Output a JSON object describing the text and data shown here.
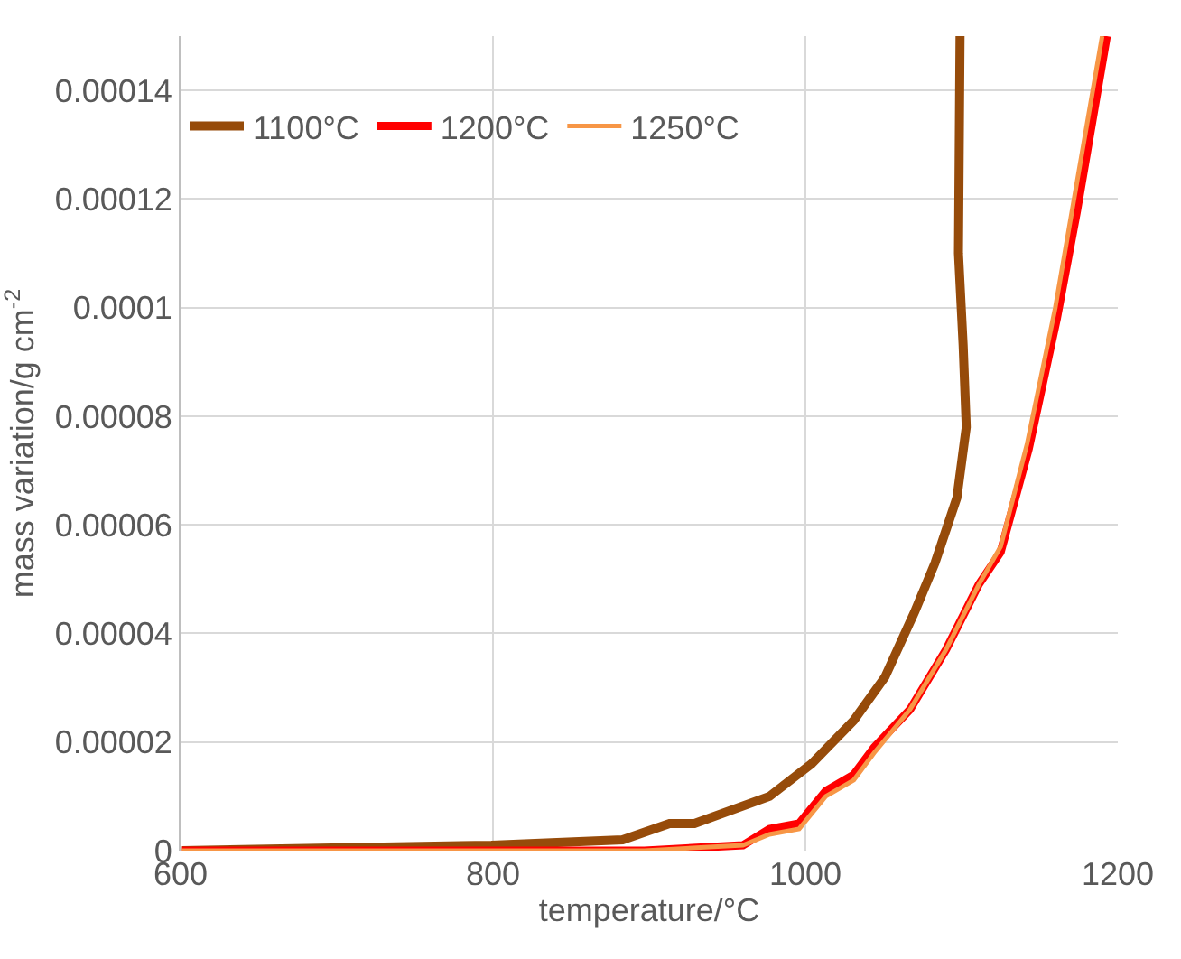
{
  "chart_data": {
    "type": "line",
    "xlabel": "temperature/°C",
    "ylabel": "mass variation/g cm$^{-2}$",
    "xlim": [
      600,
      1200
    ],
    "xticks": [
      600,
      800,
      1000,
      1200
    ],
    "ylim": [
      0,
      0.00015
    ],
    "yticks": [
      0,
      {
        "value": 2e-05,
        "label": "0.00002"
      },
      {
        "value": 4e-05,
        "label": "0.00004"
      },
      {
        "value": 6e-05,
        "label": "0.00006"
      },
      {
        "value": 8e-05,
        "label": "0.00008"
      },
      0.0001,
      0.00012,
      0.00014
    ],
    "grid": true,
    "legend": "top left",
    "marker": "none",
    "line_style": "solid",
    "series": [
      {
        "name": "1100°C",
        "color": "#964b0a",
        "x": [
          601,
          799,
          883,
          913,
          929,
          977,
          1004,
          1031,
          1051,
          1070,
          1083,
          1097,
          1103,
          1101,
          1098,
          1099
        ],
        "values": [
          0,
          1e-06,
          2e-06,
          5e-06,
          5e-06,
          1e-05,
          1.6e-05,
          2.4e-05,
          3.2e-05,
          4.4e-05,
          5.3e-05,
          6.5e-05,
          7.8e-05,
          9.3e-05,
          0.00011,
          0.00015
        ]
      },
      {
        "name": "1200°C",
        "color": "#ff0000",
        "x": [
          601,
          897,
          960,
          977,
          996,
          1013,
          1031,
          1044,
          1067,
          1090,
          1111,
          1125,
          1143,
          1161,
          1174,
          1193
        ],
        "values": [
          0,
          0,
          1e-06,
          4e-06,
          5e-06,
          1.1e-05,
          1.4e-05,
          1.9e-05,
          2.6e-05,
          3.7e-05,
          4.9e-05,
          5.5e-05,
          7.4e-05,
          9.8e-05,
          0.000118,
          0.00015
        ]
      },
      {
        "name": "1250°C",
        "color": "#f79646",
        "x": [
          601,
          897,
          960,
          977,
          996,
          1013,
          1031,
          1044,
          1067,
          1090,
          1111,
          1125,
          1142,
          1160,
          1172,
          1190
        ],
        "values": [
          0,
          0,
          1e-06,
          3e-06,
          4e-06,
          1e-05,
          1.3e-05,
          1.8e-05,
          2.6e-05,
          3.7e-05,
          4.9e-05,
          5.6e-05,
          7.5e-05,
          0.0001,
          0.00012,
          0.00015
        ]
      }
    ]
  }
}
